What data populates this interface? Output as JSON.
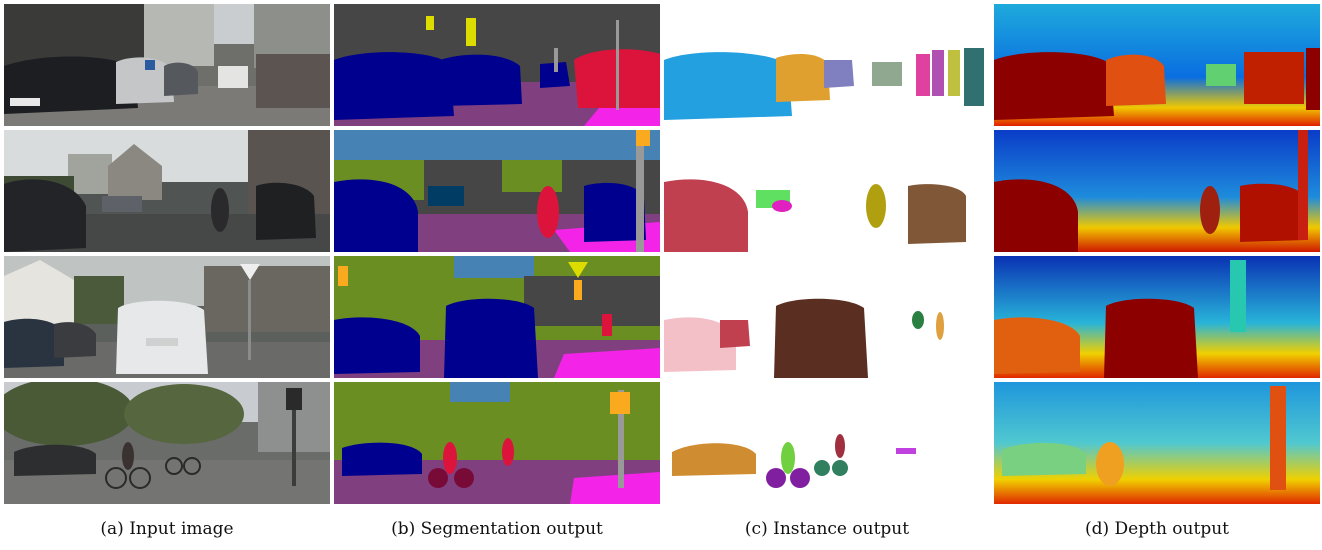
{
  "figure": {
    "captions": [
      "(a) Input image",
      "(b) Segmentation output",
      "(c) Instance output",
      "(d) Depth output"
    ]
  },
  "colors": {
    "seg_road": "#804080",
    "seg_sidewalk": "#f423e8",
    "seg_building": "#464646",
    "seg_vegetation": "#6b8e23",
    "seg_sky": "#4682b4",
    "seg_car": "#00008e",
    "seg_person": "#dc143c",
    "seg_pole": "#999999",
    "seg_sign": "#dcdc00",
    "seg_light": "#faaa1e",
    "depth_far": "#0a1ea0",
    "depth_mid": "#1eaadc",
    "depth_near_ground": "#f0c800",
    "depth_near": "#8c0000"
  }
}
